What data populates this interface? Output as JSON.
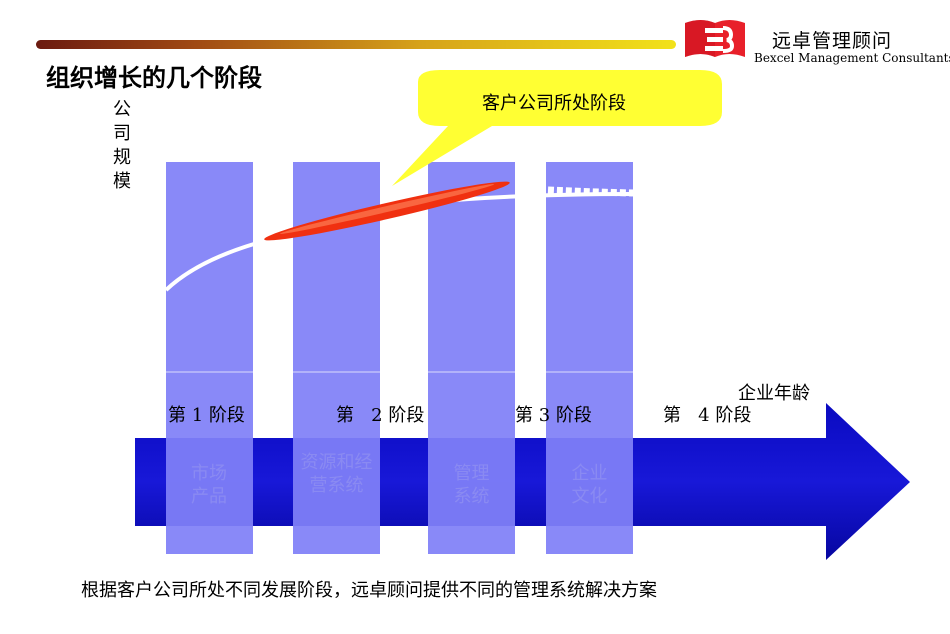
{
  "header": {
    "title": "组织增长的几个阶段",
    "brand_cn": "远卓管理顾问",
    "brand_en": "Bexcel Management Consultants"
  },
  "diagram": {
    "y_axis_label": "公司规模",
    "x_axis_label": "企业年龄",
    "callout": "客户公司所处阶段",
    "stages": [
      {
        "label": "第 1 阶段",
        "focus": "市场产品"
      },
      {
        "label": "第   2 阶段",
        "focus": "资源和经营系统"
      },
      {
        "label": "第 3 阶段",
        "focus": "管理系统"
      },
      {
        "label": "第   4 阶段",
        "focus": "企业文化"
      }
    ],
    "colors": {
      "column": "#8080f8",
      "arrow": "#1010c8",
      "callout": "#ffff33",
      "highlight": "#f03010",
      "logo": "#e8202a"
    }
  },
  "footer": {
    "summary": "根据客户公司所处不同发展阶段，远卓顾问提供不同的管理系统解决方案"
  }
}
